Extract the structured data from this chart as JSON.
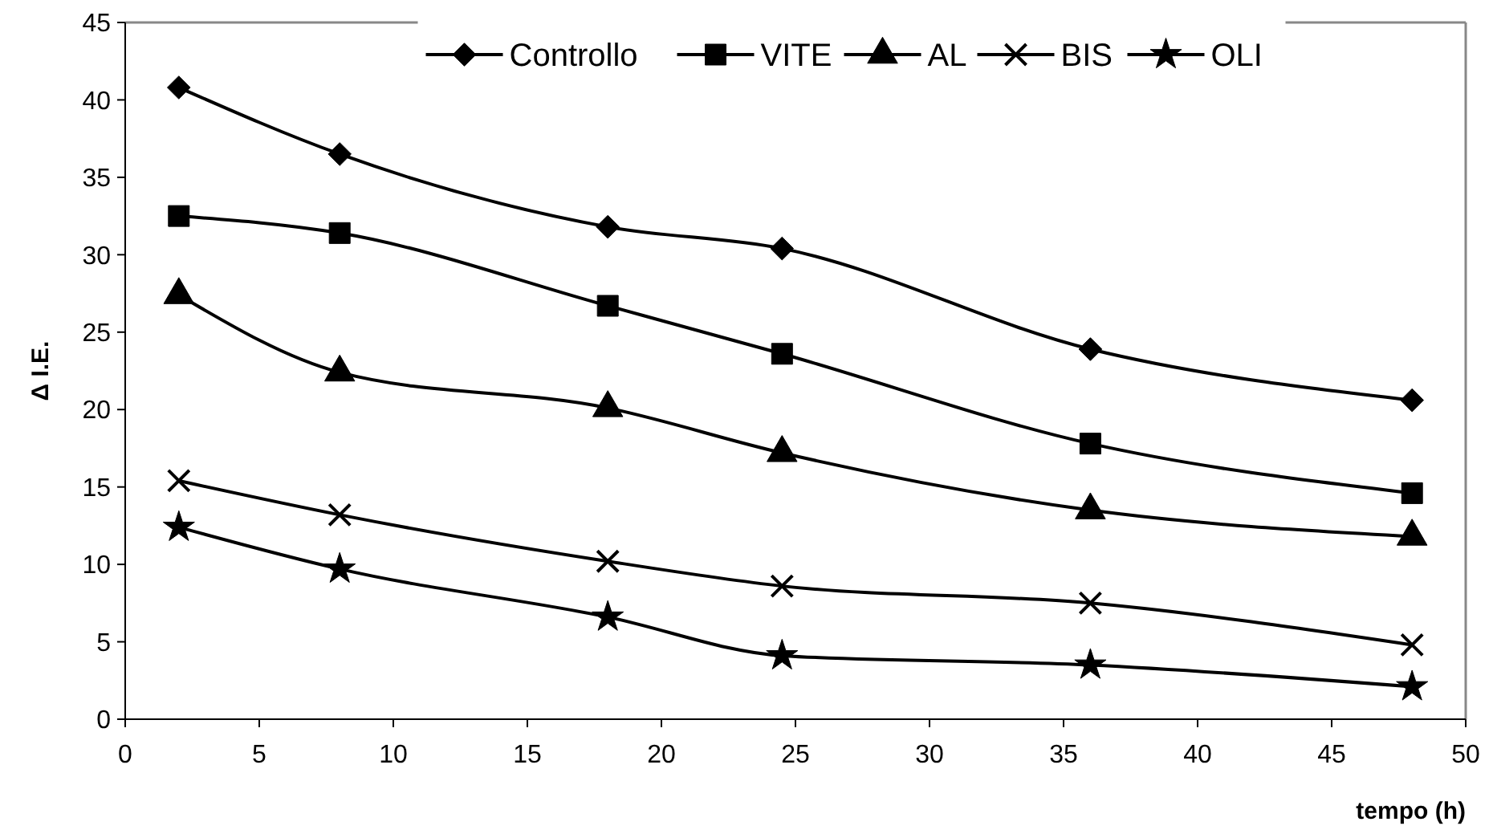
{
  "chart_data": {
    "type": "line",
    "xlabel": "tempo (h)",
    "ylabel": "Δ I.E.",
    "x": [
      2,
      8,
      18,
      24.5,
      36,
      48
    ],
    "xlim": [
      0,
      50
    ],
    "xticks": [
      0,
      5,
      10,
      15,
      20,
      25,
      30,
      35,
      40,
      45,
      50
    ],
    "ylim": [
      0,
      45
    ],
    "yticks": [
      0,
      5,
      10,
      15,
      20,
      25,
      30,
      35,
      40,
      45
    ],
    "grid": false,
    "legend": "top",
    "line_style": "solid",
    "series": [
      {
        "name": "Controllo",
        "color": "#000000",
        "marker": "diamond",
        "values": [
          40.8,
          36.5,
          31.8,
          30.4,
          23.9,
          20.6
        ]
      },
      {
        "name": "VITE",
        "color": "#000000",
        "marker": "square",
        "values": [
          32.5,
          31.4,
          26.7,
          23.6,
          17.8,
          14.6
        ]
      },
      {
        "name": "AL",
        "color": "#000000",
        "marker": "triangle",
        "values": [
          27.4,
          22.4,
          20.1,
          17.2,
          13.5,
          11.8
        ]
      },
      {
        "name": "BIS",
        "color": "#000000",
        "marker": "cross",
        "values": [
          15.4,
          13.2,
          10.2,
          8.6,
          7.5,
          4.8
        ]
      },
      {
        "name": "OLI",
        "color": "#000000",
        "marker": "star",
        "values": [
          12.4,
          9.7,
          6.6,
          4.1,
          3.5,
          2.1
        ]
      }
    ]
  }
}
